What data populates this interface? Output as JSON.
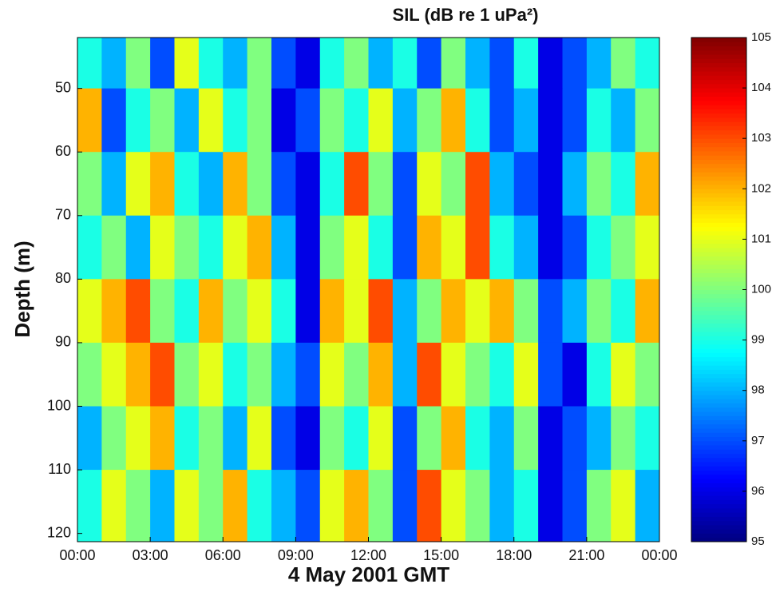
{
  "chart_data": {
    "type": "heatmap",
    "title": "SIL (dB re 1 uPa²)",
    "xlabel": "4 May 2001 GMT",
    "ylabel": "Depth (m)",
    "colormap": "jet",
    "xbins": [
      0,
      1,
      2,
      3,
      4,
      5,
      6,
      7,
      8,
      9,
      10,
      11,
      12,
      13,
      14,
      15,
      16,
      17,
      18,
      19,
      20,
      21,
      22,
      23,
      24
    ],
    "ybins": [
      42,
      50,
      60,
      70,
      80,
      90,
      100,
      110,
      121.3
    ],
    "z": [
      [
        99,
        98,
        100,
        97,
        101,
        99,
        98,
        100,
        97,
        96,
        99,
        100,
        98,
        99,
        97,
        100,
        98,
        97,
        99,
        96,
        97,
        98,
        100,
        99
      ],
      [
        102,
        97,
        99,
        100,
        98,
        101,
        99,
        100,
        96,
        97,
        100,
        99,
        101,
        98,
        100,
        102,
        99,
        97,
        98,
        96,
        97,
        99,
        98,
        100
      ],
      [
        100,
        98,
        101,
        102,
        99,
        98,
        102,
        100,
        97,
        96,
        99,
        103,
        100,
        97,
        101,
        100,
        103,
        98,
        97,
        96,
        98,
        100,
        99,
        102
      ],
      [
        99,
        100,
        98,
        101,
        100,
        99,
        101,
        102,
        98,
        96,
        100,
        101,
        99,
        97,
        102,
        101,
        103,
        99,
        98,
        96,
        97,
        99,
        100,
        101
      ],
      [
        101,
        102,
        103,
        100,
        99,
        102,
        100,
        101,
        99,
        96,
        102,
        101,
        103,
        98,
        100,
        102,
        101,
        102,
        100,
        97,
        98,
        100,
        99,
        102
      ],
      [
        100,
        101,
        102,
        103,
        100,
        101,
        99,
        100,
        98,
        97,
        101,
        100,
        102,
        98,
        103,
        101,
        100,
        99,
        101,
        97,
        96,
        99,
        101,
        100
      ],
      [
        98,
        100,
        101,
        102,
        99,
        100,
        98,
        101,
        97,
        96,
        100,
        99,
        101,
        97,
        100,
        102,
        99,
        98,
        100,
        96,
        97,
        98,
        100,
        99
      ],
      [
        99,
        101,
        100,
        98,
        101,
        100,
        102,
        99,
        98,
        97,
        101,
        102,
        100,
        97,
        103,
        101,
        100,
        98,
        99,
        96,
        97,
        100,
        101,
        98
      ]
    ],
    "xlim": [
      0,
      24
    ],
    "xticks": [
      {
        "value": 0,
        "label": "00:00"
      },
      {
        "value": 3,
        "label": "03:00"
      },
      {
        "value": 6,
        "label": "06:00"
      },
      {
        "value": 9,
        "label": "09:00"
      },
      {
        "value": 12,
        "label": "12:00"
      },
      {
        "value": 15,
        "label": "15:00"
      },
      {
        "value": 18,
        "label": "18:00"
      },
      {
        "value": 21,
        "label": "21:00"
      },
      {
        "value": 24,
        "label": "00:00"
      }
    ],
    "ylim": [
      42,
      121.3
    ],
    "yticks": [
      50,
      60,
      70,
      80,
      90,
      100,
      110,
      120
    ],
    "y_reversed": true,
    "clim": [
      95,
      105
    ],
    "cticks": [
      95,
      96,
      97,
      98,
      99,
      100,
      101,
      102,
      103,
      104,
      105
    ]
  }
}
